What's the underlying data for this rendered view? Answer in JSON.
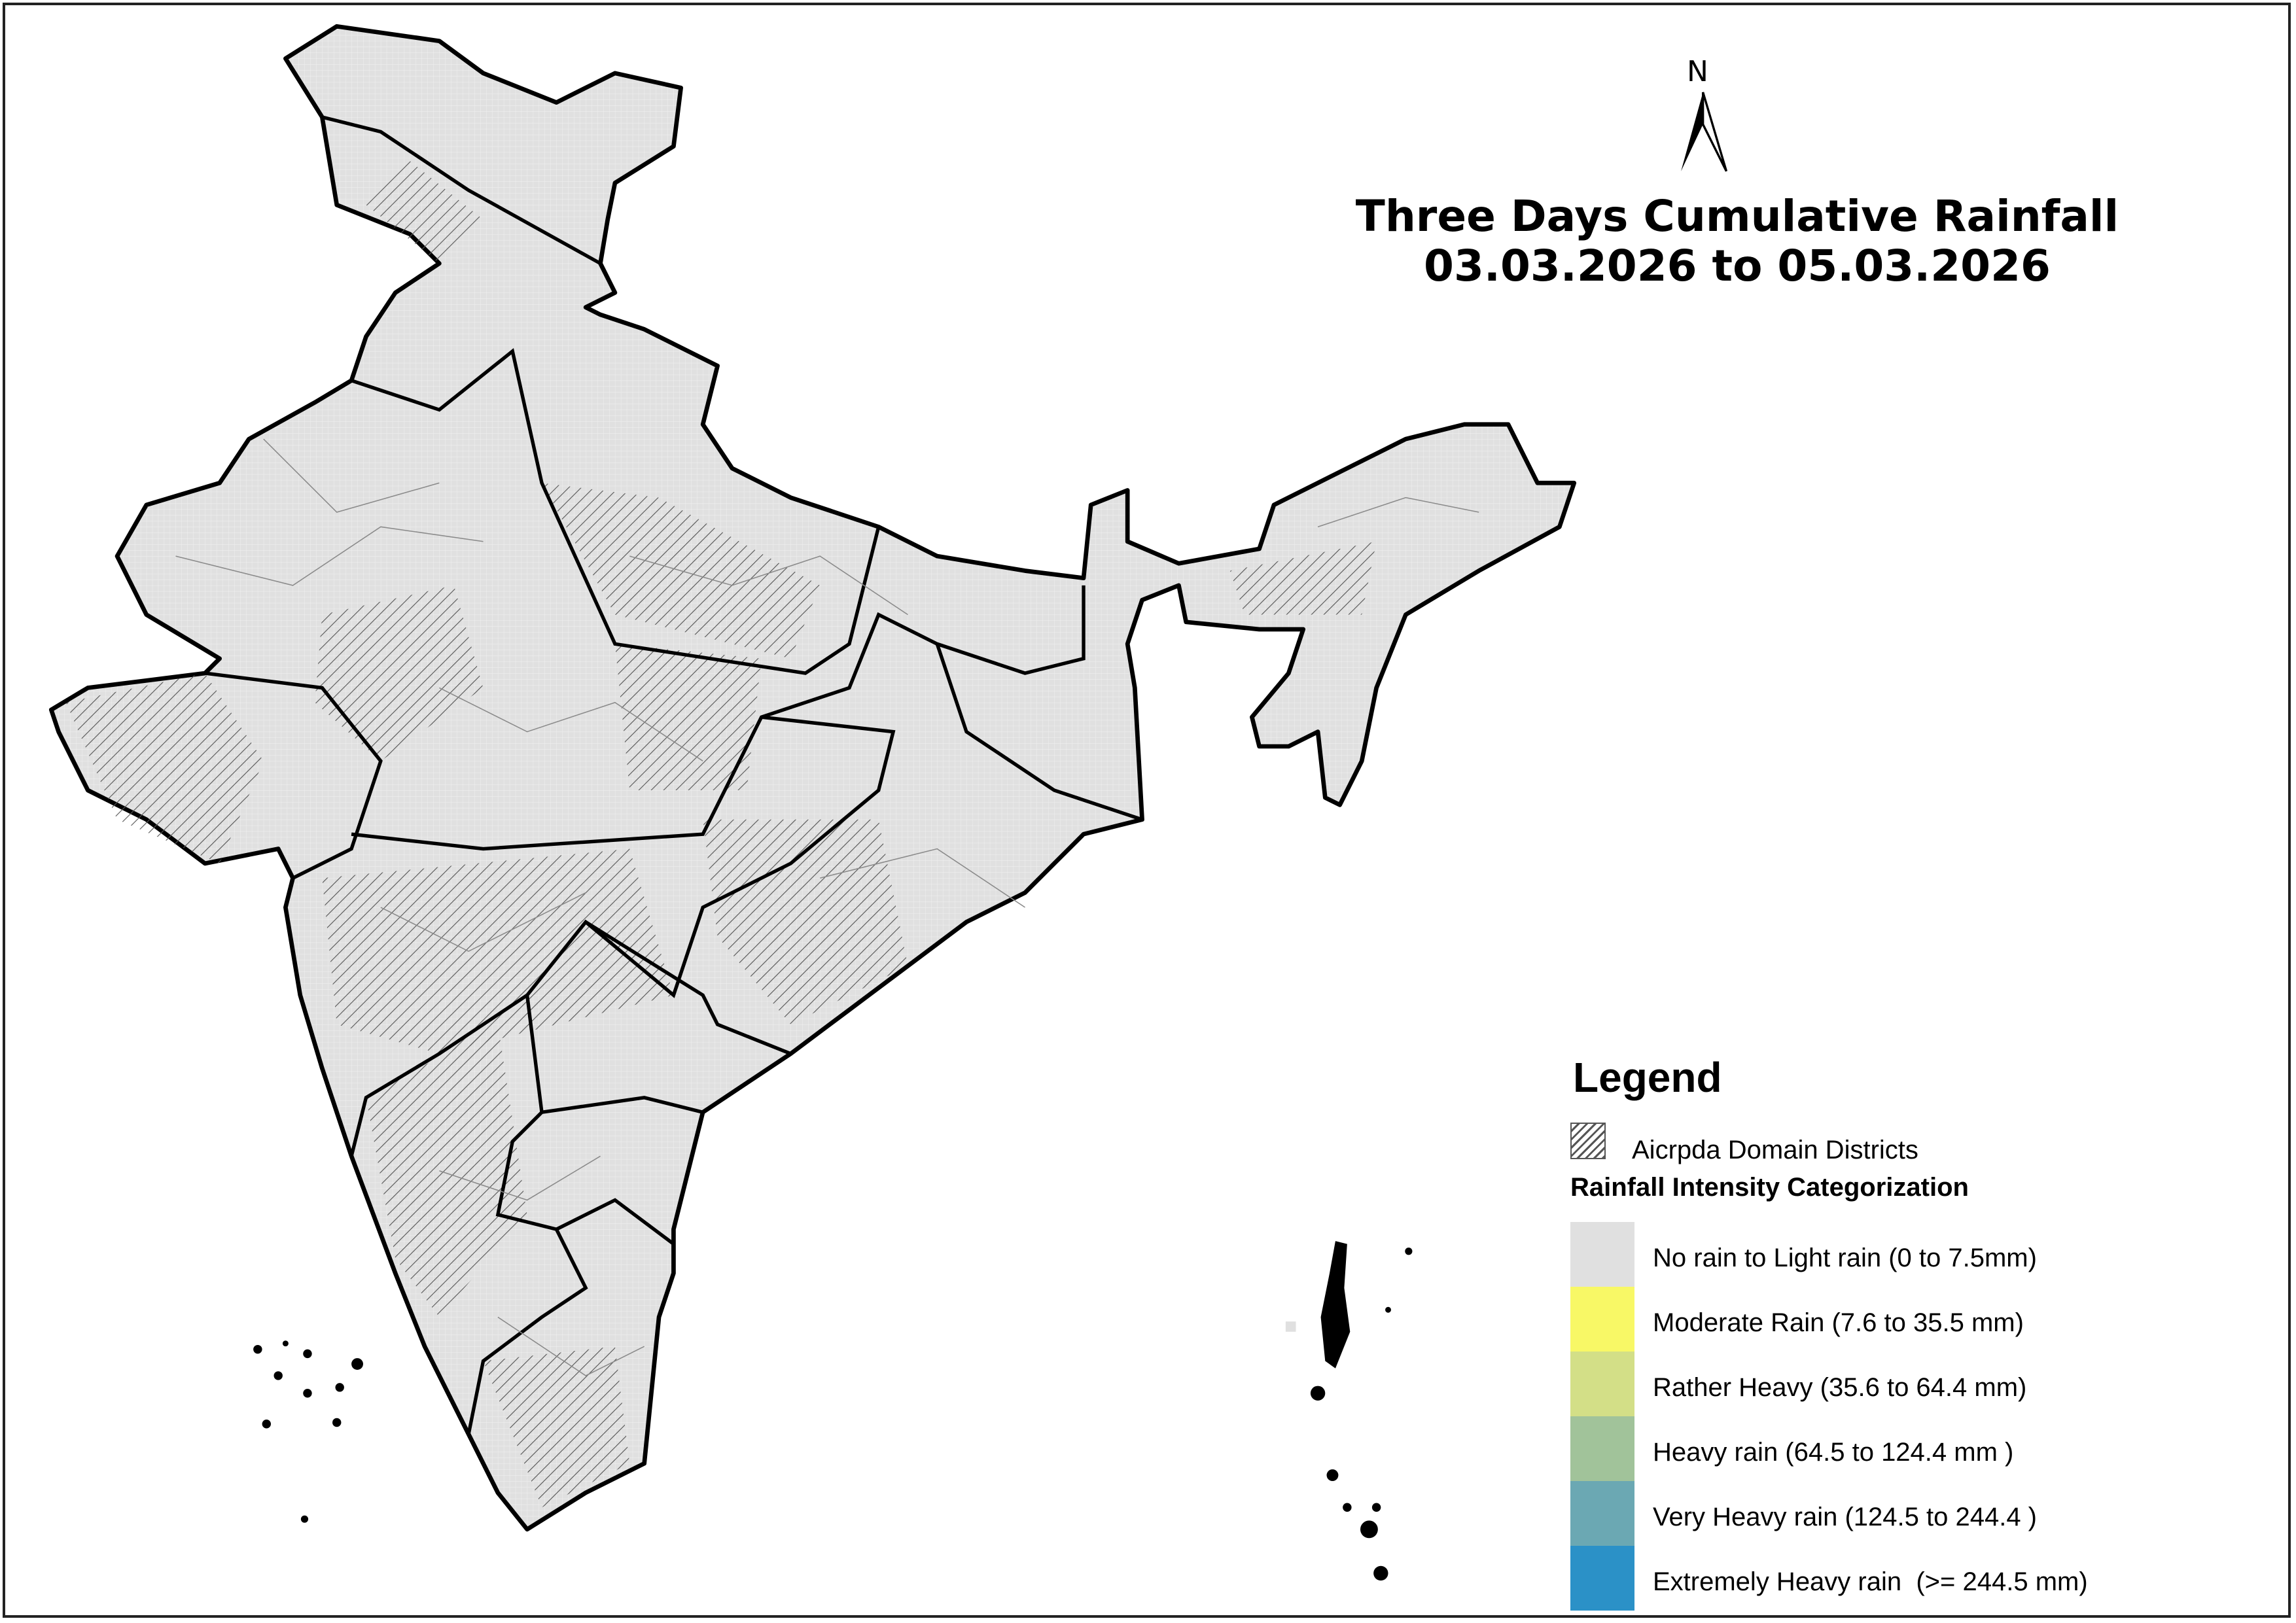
{
  "title": {
    "line1": "Three Days Cumulative Rainfall",
    "line2": "03.03.2026 to 05.03.2026"
  },
  "north_arrow": {
    "label": "N",
    "icon": "north-arrow-icon"
  },
  "legend": {
    "title": "Legend",
    "hatch_label": "Aicrpda Domain Districts",
    "category_title": "Rainfall Intensity Categorization",
    "categories": [
      {
        "label": "No rain to Light rain (0 to 7.5mm)",
        "color": "#e0e0e0"
      },
      {
        "label": "Moderate Rain (7.6 to 35.5 mm)",
        "color": "#f8f866"
      },
      {
        "label": "Rather Heavy (35.6 to 64.4 mm)",
        "color": "#d3df87"
      },
      {
        "label": "Heavy rain (64.5 to 124.4 mm )",
        "color": "#a1c39a"
      },
      {
        "label": "Very Heavy rain (124.5 to 244.4 )",
        "color": "#6ba8b3"
      },
      {
        "label": "Extremely Heavy rain  (>= 244.5 mm)",
        "color": "#2b91c7"
      }
    ]
  },
  "map": {
    "fill_color": "#e0e0e0",
    "border_color": "#000000",
    "district_line_color": "#8a8a8a"
  }
}
